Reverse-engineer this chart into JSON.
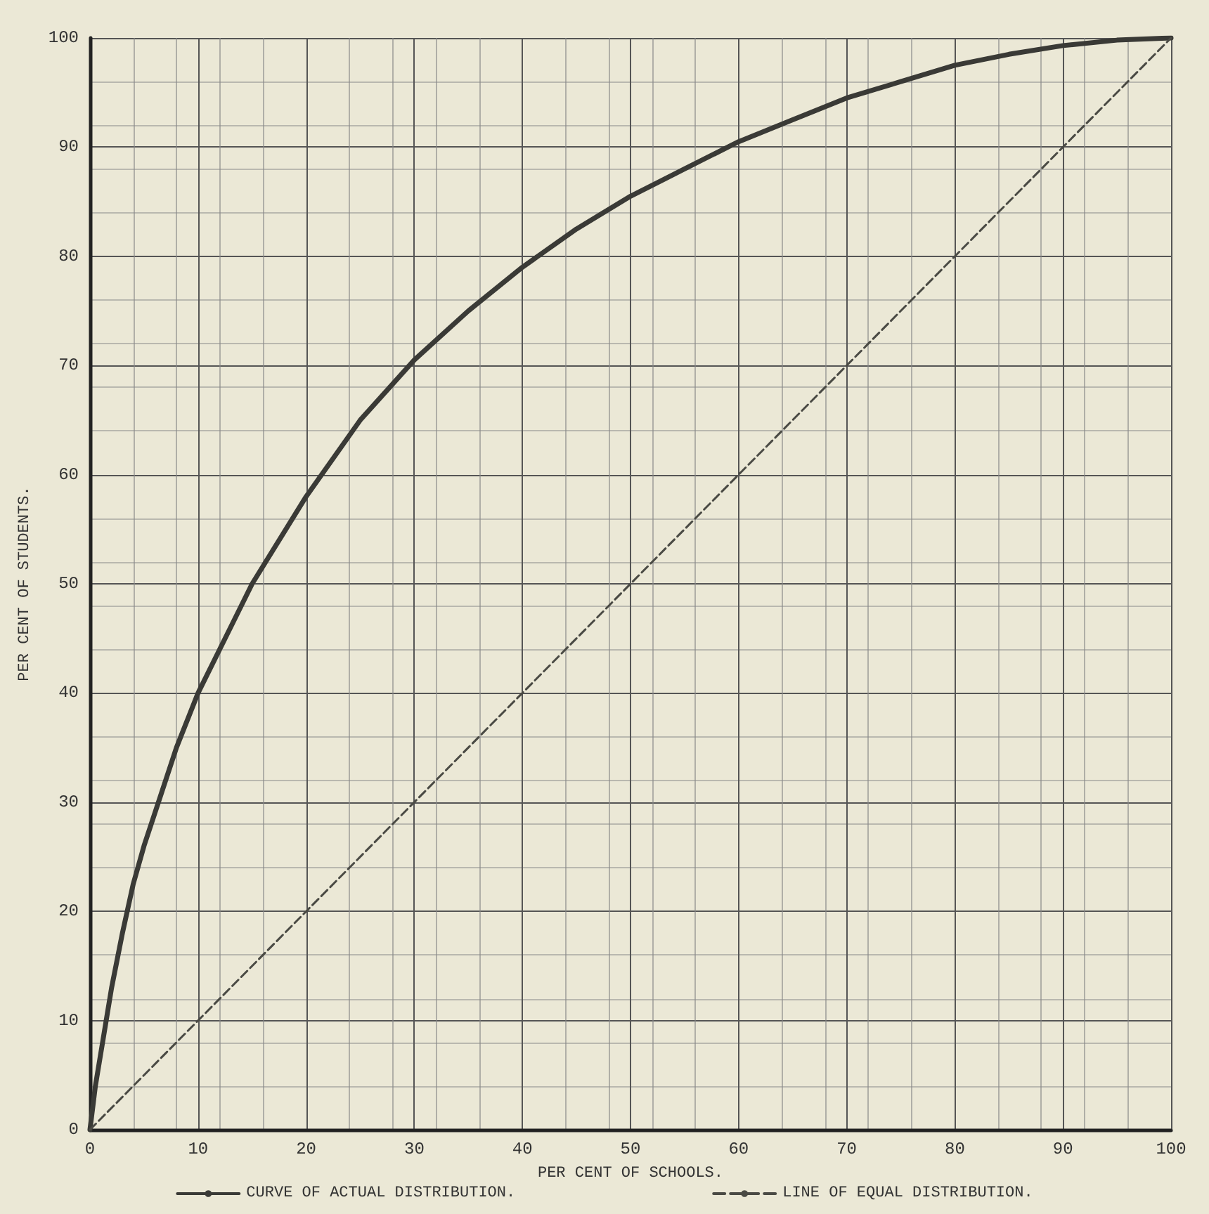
{
  "chart_data": {
    "type": "line",
    "xlabel": "PER CENT OF SCHOOLS.",
    "ylabel": "PER CENT OF STUDENTS.",
    "xlim": [
      0,
      100
    ],
    "xticks": [
      0,
      10,
      20,
      30,
      40,
      50,
      60,
      70,
      80,
      90,
      100
    ],
    "ylim": [
      0,
      100
    ],
    "yticks": [
      0,
      10,
      20,
      30,
      40,
      50,
      60,
      70,
      80,
      90,
      100
    ],
    "grid": true,
    "legend": "bottom",
    "marker": "none",
    "series": [
      {
        "name": "CURVE OF ACTUAL DISTRIBUTION.",
        "color": "#3a3a36",
        "line_style": "solid",
        "x": [
          0,
          0.5,
          1,
          1.5,
          2,
          3,
          4,
          5,
          6,
          8,
          10,
          12,
          15,
          20,
          25,
          30,
          35,
          40,
          45,
          50,
          55,
          60,
          65,
          70,
          75,
          80,
          85,
          90,
          95,
          100
        ],
        "values": [
          0,
          4,
          7,
          10,
          13,
          18,
          22.5,
          26,
          29,
          35,
          40,
          44,
          50,
          58,
          65,
          70.5,
          75,
          79,
          82.5,
          85.5,
          88,
          90.5,
          92.5,
          94.5,
          96,
          97.5,
          98.5,
          99.3,
          99.8,
          100
        ]
      },
      {
        "name": "LINE OF EQUAL DISTRIBUTION.",
        "color": "#4a4a44",
        "line_style": "dashed",
        "x": [
          0,
          100
        ],
        "values": [
          0,
          100
        ]
      }
    ]
  }
}
